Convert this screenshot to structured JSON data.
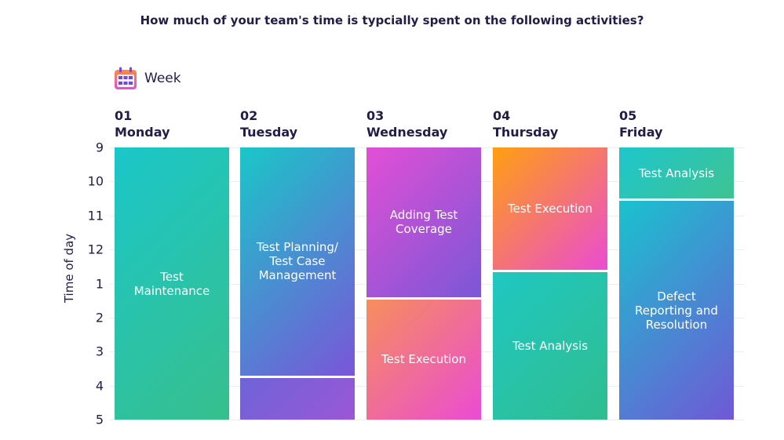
{
  "title": "How much of your team's time is typcially spent on the following activities?",
  "legend": {
    "label": "Week",
    "icon": "calendar-icon"
  },
  "chart_data": {
    "type": "timetable",
    "ylabel": "Time of day",
    "y_ticks": [
      "9",
      "10",
      "11",
      "12",
      "1",
      "2",
      "3",
      "4",
      "5"
    ],
    "ylim": [
      9,
      17
    ],
    "days": [
      {
        "num": "01",
        "name": "Monday",
        "blocks": [
          {
            "label": "Test\nMaintenance",
            "start": 9,
            "end": 17,
            "colors": [
              "#1bc7c9",
              "#37bf8c"
            ]
          }
        ]
      },
      {
        "num": "02",
        "name": "Tuesday",
        "blocks": [
          {
            "label": "Test Planning/\nTest Case\nManagement",
            "start": 9,
            "end": 15.7,
            "colors": [
              "#19c7c8",
              "#7a55d9"
            ]
          },
          {
            "label": "",
            "start": 15.7,
            "end": 17,
            "colors": [
              "#6e63d8",
              "#9b57d6"
            ]
          }
        ]
      },
      {
        "num": "03",
        "name": "Wednesday",
        "blocks": [
          {
            "label": "Adding Test\nCoverage",
            "start": 9,
            "end": 13.4,
            "colors": [
              "#e24fd6",
              "#7a57d6"
            ]
          },
          {
            "label": "Test Execution",
            "start": 13.4,
            "end": 17,
            "colors": [
              "#f68e5c",
              "#ea4cd3"
            ]
          }
        ]
      },
      {
        "num": "04",
        "name": "Thursday",
        "blocks": [
          {
            "label": "Test Execution",
            "start": 9,
            "end": 12.6,
            "colors": [
              "#ff9f10",
              "#ea4cd3"
            ]
          },
          {
            "label": "Test Analysis",
            "start": 12.6,
            "end": 17,
            "colors": [
              "#1fc8c1",
              "#30bd8f"
            ]
          }
        ]
      },
      {
        "num": "05",
        "name": "Friday",
        "blocks": [
          {
            "label": "Test Analysis",
            "start": 9,
            "end": 10.5,
            "colors": [
              "#1ec6cc",
              "#3fc393"
            ]
          },
          {
            "label": "Defect\nReporting and\nResolution",
            "start": 10.5,
            "end": 17,
            "colors": [
              "#19c2ce",
              "#7058d6"
            ]
          }
        ]
      }
    ]
  }
}
